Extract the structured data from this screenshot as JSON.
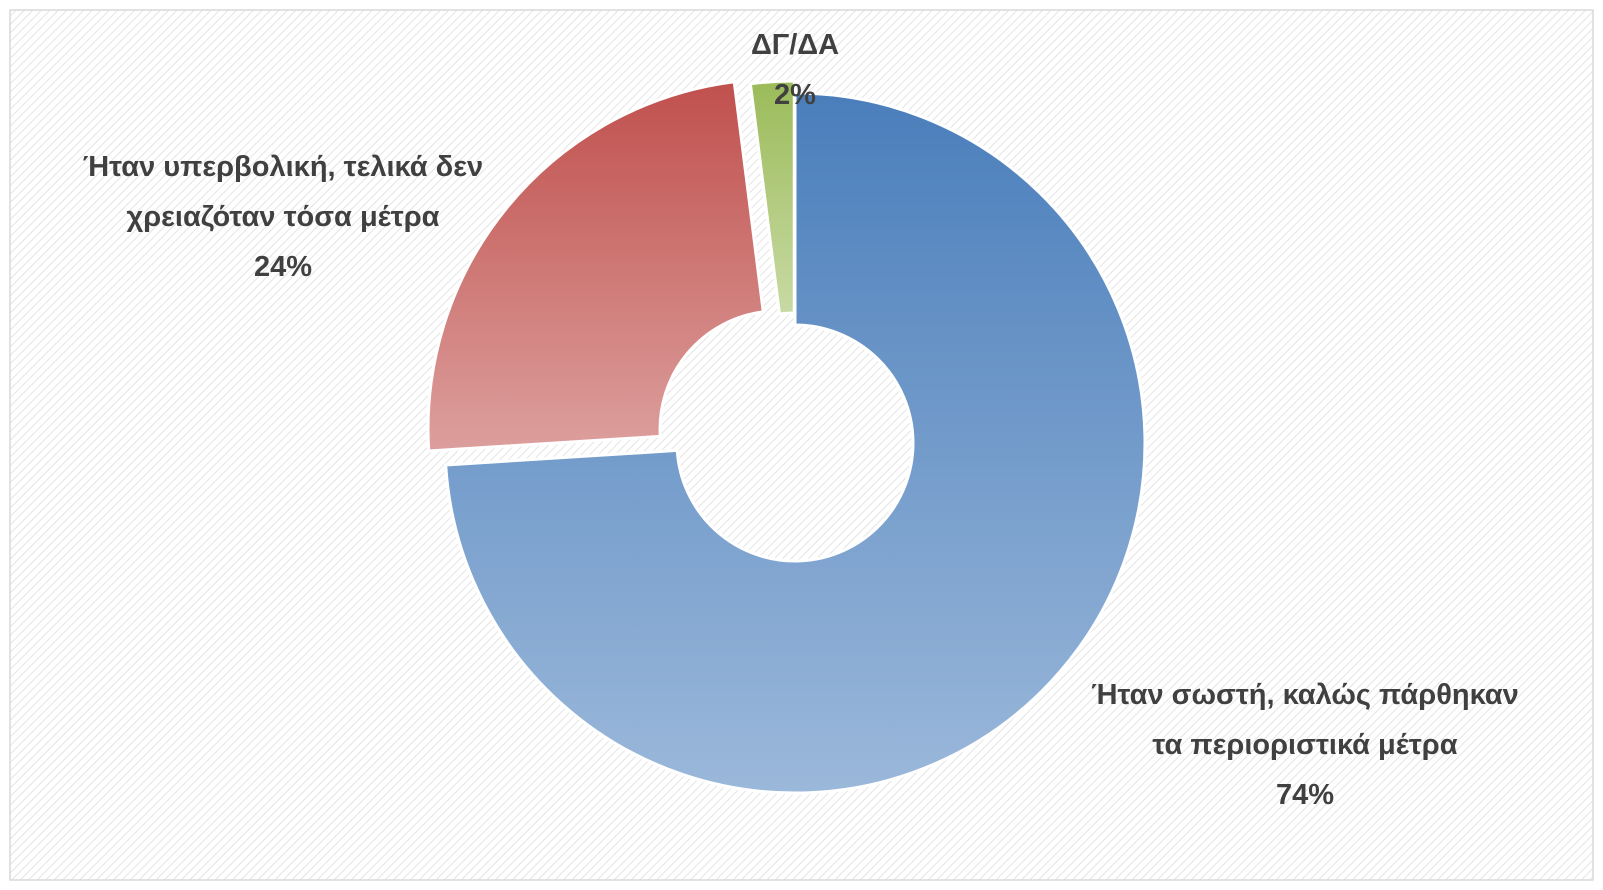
{
  "chart_data": {
    "type": "donut",
    "categories": [
      "Ήταν σωστή, καλώς πάρθηκαν τα περιοριστικά μέτρα",
      "Ήταν υπερβολική, τελικά δεν χρειαζόταν τόσα μέτρα",
      "ΔΓ/ΔΑ"
    ],
    "values": [
      74,
      24,
      2
    ],
    "value_labels": [
      "74%",
      "24%",
      "2%"
    ],
    "colors": [
      "#4a7ebb",
      "#c0504d",
      "#9bbb59"
    ]
  }
}
